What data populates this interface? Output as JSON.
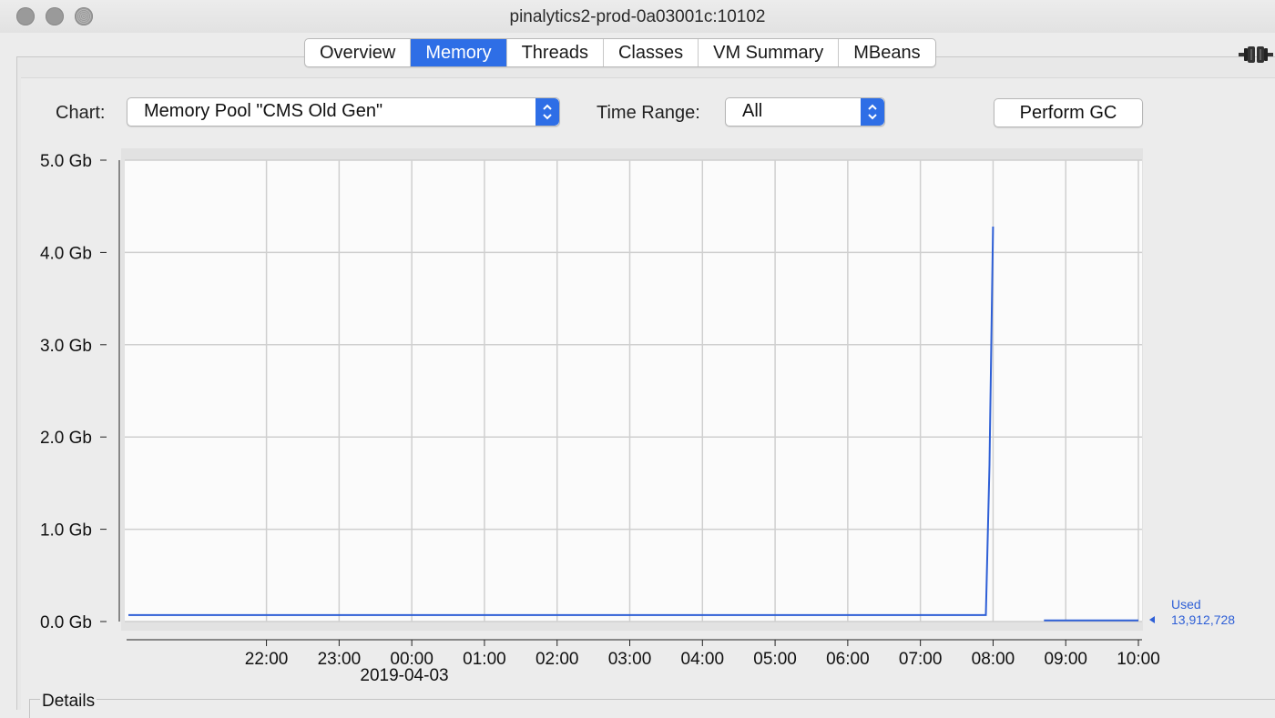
{
  "window": {
    "title": "pinalytics2-prod-0a03001c:10102"
  },
  "tabs": [
    {
      "label": "Overview",
      "active": false
    },
    {
      "label": "Memory",
      "active": true
    },
    {
      "label": "Threads",
      "active": false
    },
    {
      "label": "Classes",
      "active": false
    },
    {
      "label": "VM Summary",
      "active": false
    },
    {
      "label": "MBeans",
      "active": false
    }
  ],
  "toolbar": {
    "chart_label": "Chart:",
    "chart_value": "Memory Pool \"CMS Old Gen\"",
    "time_range_label": "Time Range:",
    "time_range_value": "All",
    "perform_gc_label": "Perform GC"
  },
  "colors": {
    "accent": "#2e6ee6",
    "series": "#2e5fd6",
    "grid": "#cfcfcf"
  },
  "legend": {
    "name": "Used",
    "value": "13,912,728"
  },
  "details": {
    "label": "Details"
  },
  "chart_data": {
    "type": "line",
    "title": "Memory Pool \"CMS Old Gen\"",
    "ylabel": "Gb",
    "ylim": [
      0,
      5.0
    ],
    "yticks": [
      "5.0 Gb",
      "4.0 Gb",
      "3.0 Gb",
      "2.0 Gb",
      "1.0 Gb",
      "0.0 Gb"
    ],
    "ytick_values": [
      5.0,
      4.0,
      3.0,
      2.0,
      1.0,
      0.0
    ],
    "xlim_hours": [
      20.05,
      34.05
    ],
    "xticks": [
      "22:00",
      "23:00",
      "00:00",
      "01:00",
      "02:00",
      "03:00",
      "04:00",
      "05:00",
      "06:00",
      "07:00",
      "08:00",
      "09:00",
      "10:00"
    ],
    "xtick_hours": [
      22,
      23,
      24,
      25,
      26,
      27,
      28,
      29,
      30,
      31,
      32,
      33,
      34
    ],
    "date_label": "2019-04-03",
    "series": [
      {
        "name": "Used",
        "segments": [
          [
            [
              20.1,
              0.07
            ],
            [
              31.9,
              0.07
            ],
            [
              31.95,
              1.7
            ],
            [
              32.0,
              4.28
            ]
          ],
          [
            [
              32.7,
              0.013
            ],
            [
              33.0,
              0.013
            ],
            [
              34.0,
              0.013
            ],
            [
              34.0,
              0.013
            ]
          ]
        ]
      }
    ],
    "grid": true,
    "legend_position": "right"
  }
}
